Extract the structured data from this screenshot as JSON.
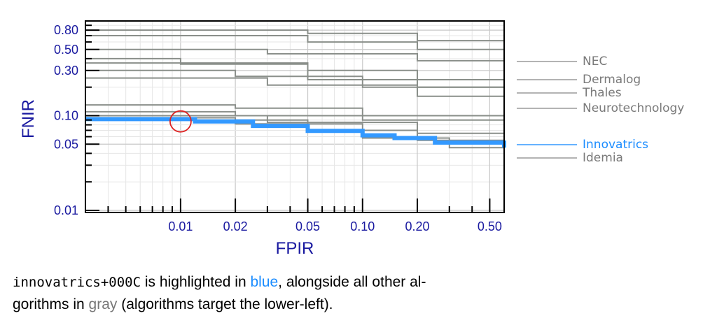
{
  "chart_data": {
    "type": "line",
    "xlabel": "FPIR",
    "ylabel": "FNIR",
    "x_scale": "log",
    "y_scale": "log",
    "xlim": [
      0.003,
      0.6
    ],
    "ylim": [
      0.0095,
      1.0
    ],
    "x_ticks": [
      0.01,
      0.02,
      0.05,
      0.1,
      0.2,
      0.5
    ],
    "x_tick_labels": [
      "0.01",
      "0.02",
      "0.05",
      "0.10",
      "0.20",
      "0.50"
    ],
    "y_ticks": [
      0.01,
      0.05,
      0.1,
      0.3,
      0.5,
      0.8
    ],
    "y_tick_labels": [
      "0.01",
      "0.05",
      "0.10",
      "0.30",
      "0.50",
      "0.80"
    ],
    "grid": true,
    "colors": {
      "highlight": "#3399ff",
      "others": "#8a8f8a",
      "axis_text": "#1a1aa0",
      "label_highlight": "#1a8cff",
      "label_gray": "#7a7a7a"
    },
    "highlight_series": {
      "name": "Innovatrics",
      "points": [
        [
          0.003,
          0.092
        ],
        [
          0.012,
          0.087
        ],
        [
          0.025,
          0.078
        ],
        [
          0.05,
          0.069
        ],
        [
          0.1,
          0.062
        ],
        [
          0.15,
          0.058
        ],
        [
          0.25,
          0.052
        ],
        [
          0.6,
          0.046
        ]
      ]
    },
    "series": [
      {
        "name": "NEC",
        "points": [
          [
            0.003,
            0.8
          ],
          [
            0.05,
            0.74
          ],
          [
            0.2,
            0.62
          ],
          [
            0.6,
            0.35
          ]
        ]
      },
      {
        "points": [
          [
            0.003,
            0.7
          ],
          [
            0.05,
            0.6
          ],
          [
            0.2,
            0.5
          ],
          [
            0.6,
            0.4
          ]
        ]
      },
      {
        "points": [
          [
            0.003,
            0.5
          ],
          [
            0.03,
            0.45
          ],
          [
            0.2,
            0.38
          ],
          [
            0.6,
            0.28
          ]
        ]
      },
      {
        "name": "Dermalog",
        "points": [
          [
            0.003,
            0.4
          ],
          [
            0.01,
            0.35
          ],
          [
            0.05,
            0.3
          ],
          [
            0.2,
            0.24
          ],
          [
            0.6,
            0.2
          ]
        ]
      },
      {
        "name": "Thales",
        "points": [
          [
            0.003,
            0.36
          ],
          [
            0.05,
            0.24
          ],
          [
            0.2,
            0.2
          ],
          [
            0.6,
            0.16
          ]
        ]
      },
      {
        "name": "Neurotechnology",
        "points": [
          [
            0.003,
            0.3
          ],
          [
            0.02,
            0.26
          ],
          [
            0.1,
            0.2
          ],
          [
            0.6,
            0.13
          ]
        ]
      },
      {
        "points": [
          [
            0.003,
            0.25
          ],
          [
            0.03,
            0.21
          ],
          [
            0.2,
            0.16
          ],
          [
            0.6,
            0.11
          ]
        ]
      },
      {
        "points": [
          [
            0.003,
            0.13
          ],
          [
            0.02,
            0.12
          ],
          [
            0.1,
            0.1
          ],
          [
            0.6,
            0.085
          ]
        ]
      },
      {
        "points": [
          [
            0.003,
            0.11
          ],
          [
            0.02,
            0.1
          ],
          [
            0.1,
            0.09
          ],
          [
            0.6,
            0.07
          ]
        ]
      },
      {
        "points": [
          [
            0.003,
            0.1
          ],
          [
            0.03,
            0.085
          ],
          [
            0.2,
            0.065
          ],
          [
            0.6,
            0.055
          ]
        ]
      },
      {
        "name": "Idemia",
        "points": [
          [
            0.003,
            0.095
          ],
          [
            0.02,
            0.082
          ],
          [
            0.1,
            0.058
          ],
          [
            0.3,
            0.046
          ],
          [
            0.6,
            0.038
          ]
        ]
      },
      {
        "points": [
          [
            0.003,
            0.09
          ],
          [
            0.05,
            0.07
          ],
          [
            0.2,
            0.055
          ],
          [
            0.6,
            0.042
          ]
        ]
      }
    ],
    "highlight_marker": {
      "x": 0.01,
      "y": 0.087,
      "shape": "circle",
      "color": "#dd2222"
    },
    "labels": [
      {
        "text": "NEC",
        "y": 0.38,
        "highlight": false
      },
      {
        "text": "Dermalog",
        "y": 0.245,
        "highlight": false
      },
      {
        "text": "Thales",
        "y": 0.185,
        "highlight": false
      },
      {
        "text": "Neurotechnology",
        "y": 0.135,
        "highlight": false
      },
      {
        "text": "Innovatrics",
        "y": 0.049,
        "highlight": true
      },
      {
        "text": "Idemia",
        "y": 0.037,
        "highlight": false
      }
    ]
  },
  "caption": {
    "algorithm": "innovatrics+000C",
    "part1": " is highlighted in ",
    "blue_word": "blue",
    "part2": ", alongside all other al-",
    "line2_start": "gorithms in ",
    "gray_word": "gray",
    "line2_end": " (algorithms target the lower-left)."
  }
}
